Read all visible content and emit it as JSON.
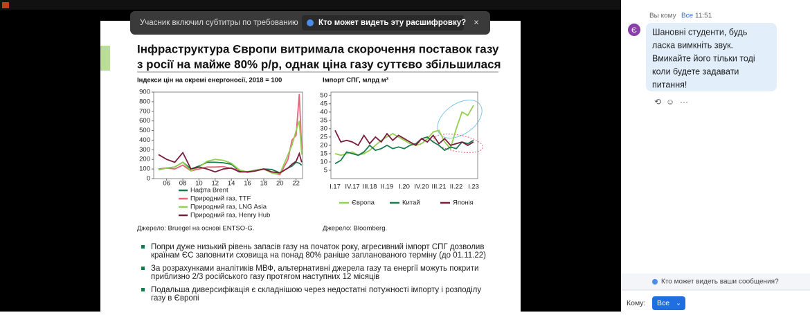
{
  "caption_banner": {
    "text": "Учасник включил субтитры по требованию",
    "button": "Кто может видеть эту расшифровку?"
  },
  "slide": {
    "title_lines": [
      "Інфраструктура Європи витримала скорочення поставок газу",
      "з росії на майже 80% р/р, однак ціна газу суттєво збільшилася"
    ],
    "sources": [
      "Джерело: Bruegel на основі ENTSO-G.",
      "Джерело: Bloomberg."
    ],
    "bullets": [
      [
        "Попри дуже низький рівень запасів газу на початок року, агресивний імпорт СПГ дозволив",
        "країнам ЄС заповнити сховища на понад 80% раніше запланованого терміну (до 01.11.22)"
      ],
      [
        "За розрахунками аналітиків МВФ, альтернативні джерела газу та енергії можуть покрити",
        "приблизно 2/3 російського газу протягом наступних 12 місяців"
      ],
      [
        "Подальша диверсифікація є складнішою через недостатні потужності імпорту і розподілу",
        "газу в Європі"
      ]
    ]
  },
  "chart_data": [
    {
      "type": "line",
      "title": "Індекси цін на окремі енергоносії, 2018 = 100",
      "x": [
        5,
        6,
        7,
        8,
        9,
        10,
        11,
        12,
        13,
        14,
        15,
        16,
        17,
        18,
        19,
        20,
        21,
        21.5,
        22,
        22.4,
        22.7
      ],
      "xlim": [
        4.4,
        22.8
      ],
      "xticks": [
        {
          "value": 6,
          "label": "06"
        },
        {
          "value": 8,
          "label": "08"
        },
        10,
        12,
        14,
        16,
        18,
        20,
        22
      ],
      "ylim": [
        0,
        900
      ],
      "yticks": [
        0,
        100,
        200,
        300,
        400,
        500,
        600,
        700,
        800,
        900
      ],
      "legend": "below-left",
      "series": [
        {
          "name": "Нафта Brent",
          "color": "#1a7a4c",
          "values": [
            100,
            110,
            120,
            170,
            100,
            130,
            170,
            170,
            165,
            150,
            80,
            70,
            90,
            100,
            95,
            60,
            110,
            130,
            170,
            160,
            140
          ]
        },
        {
          "name": "Природний газ, TTF",
          "color": "#e8637a",
          "values": [
            100,
            110,
            100,
            140,
            80,
            100,
            120,
            120,
            125,
            105,
            90,
            65,
            80,
            100,
            60,
            40,
            200,
            400,
            450,
            880,
            300
          ]
        },
        {
          "name": "Природний газ, LNG Asia",
          "color": "#92d050",
          "values": [
            90,
            110,
            120,
            170,
            80,
            120,
            180,
            200,
            190,
            160,
            90,
            70,
            90,
            100,
            60,
            50,
            250,
            350,
            500,
            600,
            250
          ]
        },
        {
          "name": "Природний газ, Henry Hub",
          "color": "#7b1c3a",
          "values": [
            250,
            200,
            170,
            270,
            100,
            120,
            100,
            70,
            100,
            110,
            70,
            70,
            80,
            100,
            70,
            60,
            110,
            150,
            180,
            260,
            170
          ]
        }
      ]
    },
    {
      "type": "line",
      "title": "Імпорт СПГ, млрд м³",
      "categories": [
        "I.17",
        null,
        null,
        "IV.17",
        null,
        null,
        "III.18",
        null,
        null,
        "II.19",
        null,
        null,
        "I.20",
        null,
        null,
        "IV.20",
        null,
        null,
        "III.21",
        null,
        null,
        "II.22",
        null,
        null,
        "I.23"
      ],
      "ylim": [
        0,
        52
      ],
      "yticks": [
        5,
        10,
        15,
        20,
        25,
        30,
        35,
        40,
        45,
        50
      ],
      "legend": "bottom",
      "series": [
        {
          "name": "Європа",
          "color": "#92d050",
          "values": [
            15,
            14,
            15,
            16,
            14,
            15,
            17,
            20,
            23,
            25,
            27,
            25,
            23,
            21,
            20,
            21,
            24,
            28,
            29,
            22,
            18,
            30,
            40,
            38,
            44
          ]
        },
        {
          "name": "Китай",
          "color": "#1a7a4c",
          "values": [
            9,
            11,
            16,
            15,
            14,
            16,
            20,
            17,
            18,
            20,
            18,
            19,
            18,
            20,
            21,
            24,
            25,
            22,
            20,
            17,
            19,
            18,
            22,
            21,
            23
          ]
        },
        {
          "name": "Японія",
          "color": "#7b1c3a",
          "values": [
            29,
            22,
            23,
            22,
            20,
            26,
            21,
            25,
            22,
            27,
            23,
            26,
            24,
            22,
            20,
            24,
            22,
            26,
            21,
            24,
            20,
            21,
            22,
            20,
            22
          ]
        }
      ]
    }
  ],
  "chat": {
    "from": "Вы кому",
    "to": "Все",
    "time": "11:51",
    "avatar": "Є",
    "message_lines": [
      "Шановні студенти, будь",
      "ласка вимкніть звук.",
      "Вмикайте його тільки тоді",
      "коли будете задавати",
      "питання!"
    ],
    "privacy": "Кто может видеть ваши сообщения?",
    "to_label": "Кому:",
    "recipient": "Все"
  }
}
